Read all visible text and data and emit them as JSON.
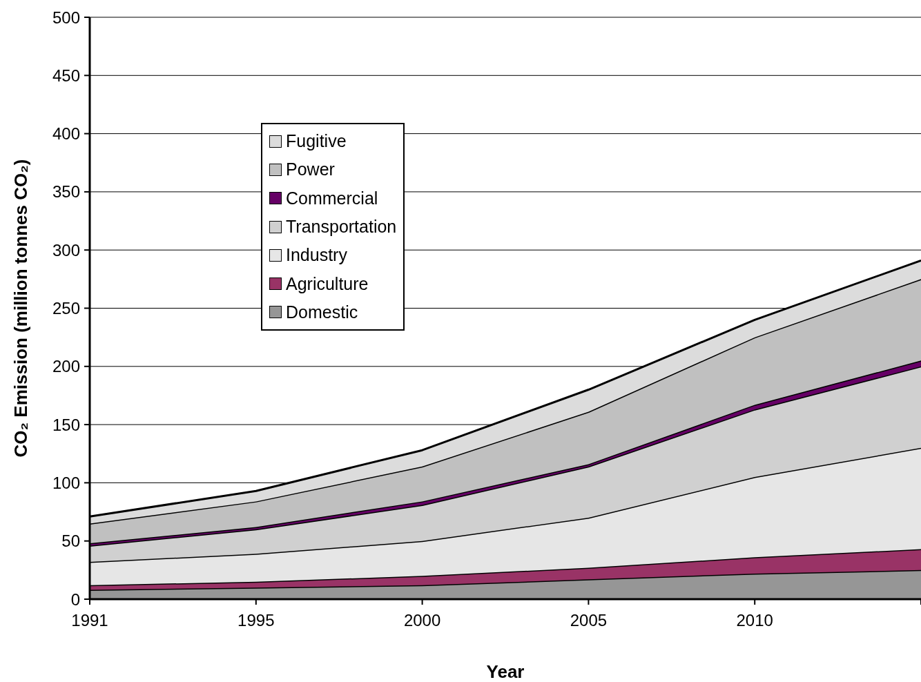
{
  "chart_data": {
    "type": "area",
    "stacked": true,
    "xlabel": "Year",
    "ylabel": "CO₂ Emission (million tonnes CO₂)",
    "categories": [
      "1991",
      "1995",
      "2000",
      "2005",
      "2010",
      null
    ],
    "series": [
      {
        "name": "Domestic",
        "color": "#969696",
        "values": [
          8,
          10,
          12,
          17,
          22,
          25
        ]
      },
      {
        "name": "Agriculture",
        "color": "#993366",
        "values": [
          4,
          5,
          8,
          10,
          14,
          18
        ]
      },
      {
        "name": "Industry",
        "color": "#e6e6e6",
        "values": [
          20,
          24,
          30,
          43,
          69,
          87
        ]
      },
      {
        "name": "Transportation",
        "color": "#d0d0d0",
        "values": [
          14,
          21,
          31,
          44,
          58,
          70
        ]
      },
      {
        "name": "Commercial",
        "color": "#660066",
        "values": [
          2,
          2,
          3,
          2,
          4,
          5
        ]
      },
      {
        "name": "Power",
        "color": "#c0c0c0",
        "values": [
          17,
          22,
          30,
          45,
          58,
          70
        ]
      },
      {
        "name": "Fugitive",
        "color": "#dcdcdc",
        "values": [
          6,
          9,
          14,
          19,
          15,
          16
        ]
      }
    ],
    "ylim": [
      0,
      500
    ],
    "yticks": [
      0,
      50,
      100,
      150,
      200,
      250,
      300,
      350,
      400,
      450,
      500
    ],
    "grid": "y",
    "legend": "top left"
  }
}
